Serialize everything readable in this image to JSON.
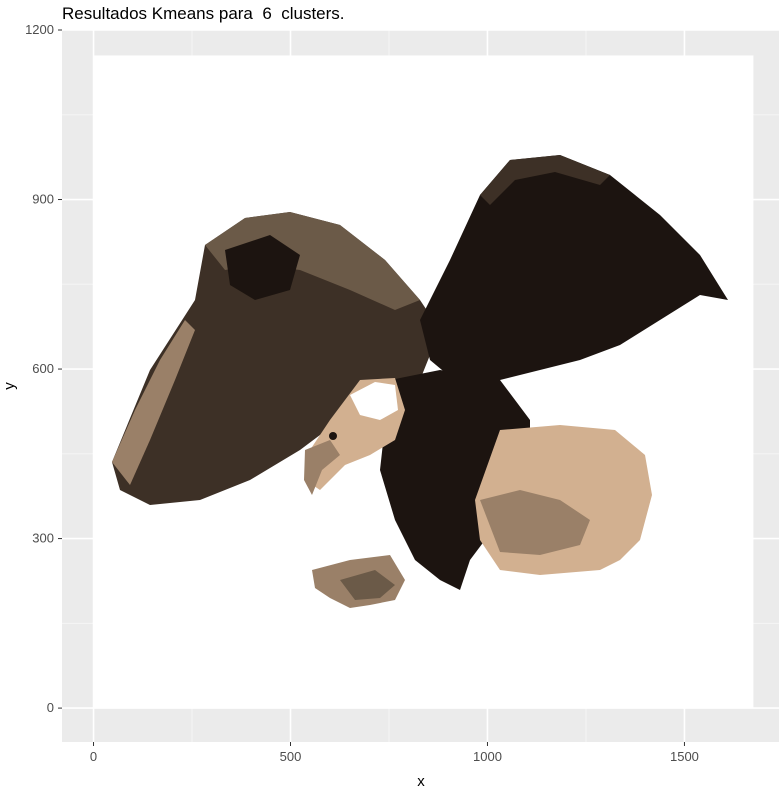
{
  "title": "Resultados Kmeans para  6  clusters.",
  "chart_data": {
    "type": "scatter",
    "title": "Resultados Kmeans para  6  clusters.",
    "xlabel": "x",
    "ylabel": "y",
    "xlim": [
      -80,
      1740
    ],
    "ylim": [
      -60,
      1200
    ],
    "x_ticks": [
      "0",
      "500",
      "1000",
      "1500"
    ],
    "y_ticks": [
      "0",
      "300",
      "600",
      "900",
      "1200"
    ],
    "image_extent": {
      "x": [
        0,
        1675
      ],
      "y": [
        0,
        1155
      ]
    },
    "grid": true,
    "legend": "none",
    "description_cluster_colors": [
      "#ffffff",
      "#1c1410",
      "#3d3026",
      "#6b5a48",
      "#9a8068",
      "#d2b090"
    ]
  },
  "colors": {
    "panel_bg": "#ebebeb",
    "grid_major": "#ffffff",
    "grid_minor": "#f5f5f5",
    "tick": "#333333"
  }
}
